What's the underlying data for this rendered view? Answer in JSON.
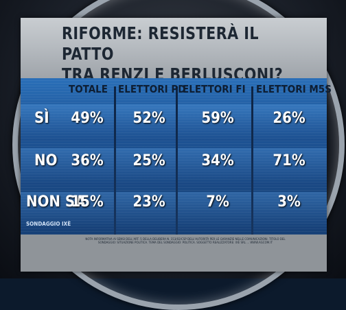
{
  "title_line1": "RIFORME: RESISTERÀ IL PATTO",
  "title_line2": "TRA RENZI E BERLUSCONI?",
  "columns": [
    "TOTALE",
    "ELETTORI PD",
    "ELETTORI FI",
    "ELETTORI M5S"
  ],
  "rows": [
    {
      "label": "SÌ",
      "values": [
        "49%",
        "52%",
        "59%",
        "26%"
      ]
    },
    {
      "label": "NO",
      "values": [
        "36%",
        "25%",
        "34%",
        "71%"
      ]
    },
    {
      "label": "NON SA",
      "values": [
        "15%",
        "23%",
        "7%",
        "3%"
      ]
    }
  ],
  "source": "SONDAGGIO IXÈ",
  "footer_note": "NOTA INFORMATIVA AI SENSI DELL'ART. 5 DELLA DELIBERA N. 153/02/CSP DELL'AUTORITÀ PER LE GARANZIE NELLE COMUNICAZIONI. TITOLO DEL SONDAGGIO: SITUAZIONE POLITICA. TEMA DEL SONDAGGIO: POLITICA. SOGGETTO REALIZZATORE: IXÈ SRL ... WWW.AGCOM.IT"
}
